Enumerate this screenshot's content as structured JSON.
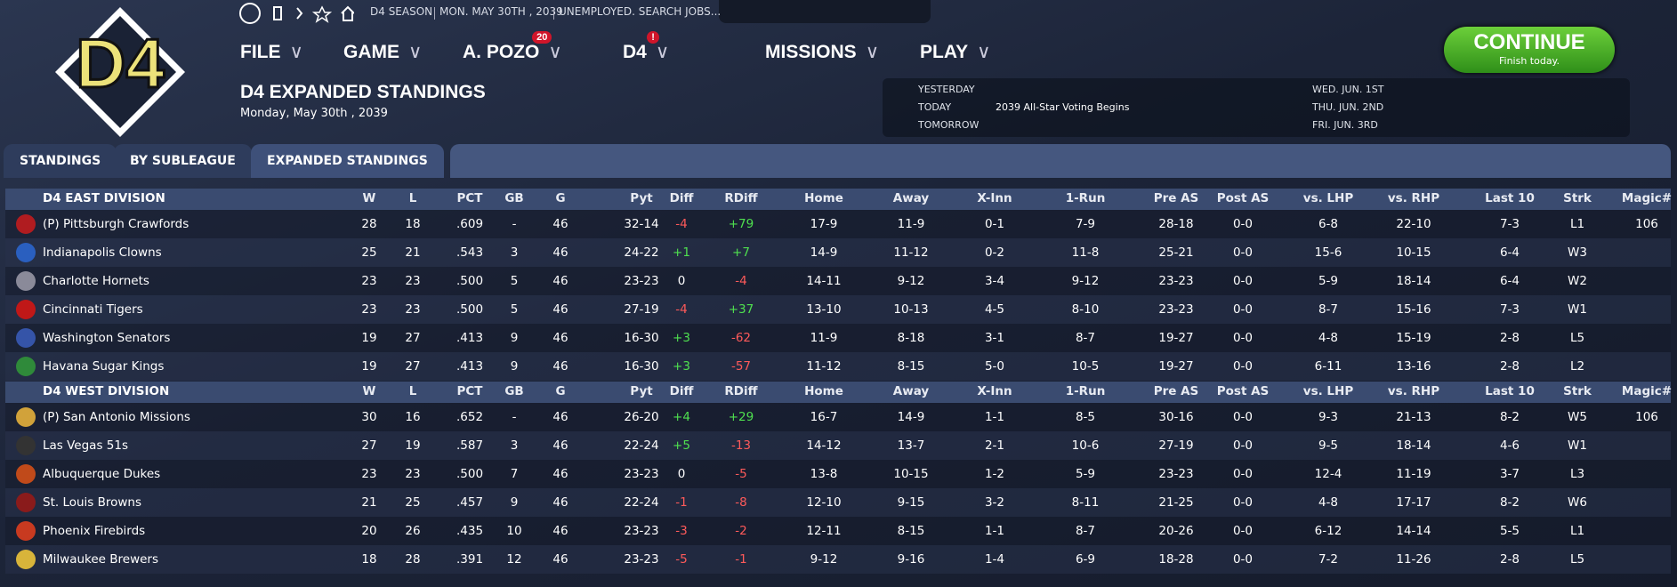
{
  "header": {
    "logo": "D4",
    "toolbar": [
      "D4 SEASON",
      "MON. MAY 30TH , 2039",
      "UNEMPLOYED. SEARCH JOBS..."
    ],
    "menu": [
      {
        "label": "FILE"
      },
      {
        "label": "GAME"
      },
      {
        "label": "A. POZO",
        "badge": "20"
      },
      {
        "label": "D4",
        "badge": "!"
      },
      {
        "label": "MISSIONS"
      },
      {
        "label": "PLAY"
      }
    ],
    "page_title": "D4 EXPANDED STANDINGS",
    "date": "Monday, May 30th , 2039"
  },
  "schedule": {
    "days": [
      "YESTERDAY",
      "TODAY",
      "TOMORROW"
    ],
    "today_event": "2039 All-Star Voting Begins",
    "upcoming": [
      "WED. JUN. 1ST",
      "THU. JUN. 2ND",
      "FRI. JUN. 3RD"
    ]
  },
  "continue": {
    "label": "CONTINUE",
    "sub": "Finish today."
  },
  "tabs": [
    "STANDINGS",
    "BY SUBLEAGUE",
    "EXPANDED STANDINGS"
  ],
  "table": {
    "columns": [
      "W",
      "L",
      "PCT",
      "GB",
      "G",
      "Pyt",
      "Diff",
      "RDiff",
      "Home",
      "Away",
      "X-Inn",
      "1-Run",
      "Pre AS",
      "Post AS",
      "vs. LHP",
      "vs. RHP",
      "Last 10",
      "Strk",
      "Magic#"
    ],
    "divisions": [
      {
        "name": "D4 EAST DIVISION",
        "rows": [
          [
            "(P) Pittsburgh Crawfords",
            "28",
            "18",
            ".609",
            "-",
            "46",
            "32-14",
            "-4",
            "+79",
            "17-9",
            "11-9",
            "0-1",
            "7-9",
            "28-18",
            "0-0",
            "6-8",
            "22-10",
            "7-3",
            "L1",
            "106"
          ],
          [
            "Indianapolis Clowns",
            "25",
            "21",
            ".543",
            "3",
            "46",
            "24-22",
            "+1",
            "+7",
            "14-9",
            "11-12",
            "0-2",
            "11-8",
            "25-21",
            "0-0",
            "15-6",
            "10-15",
            "6-4",
            "W3"
          ],
          [
            "Charlotte Hornets",
            "23",
            "23",
            ".500",
            "5",
            "46",
            "23-23",
            "0",
            "-4",
            "14-11",
            "9-12",
            "3-4",
            "9-12",
            "23-23",
            "0-0",
            "5-9",
            "18-14",
            "6-4",
            "W2"
          ],
          [
            "Cincinnati Tigers",
            "23",
            "23",
            ".500",
            "5",
            "46",
            "27-19",
            "-4",
            "+37",
            "13-10",
            "10-13",
            "4-5",
            "8-10",
            "23-23",
            "0-0",
            "8-7",
            "15-16",
            "7-3",
            "W1"
          ],
          [
            "Washington Senators",
            "19",
            "27",
            ".413",
            "9",
            "46",
            "16-30",
            "+3",
            "-62",
            "11-9",
            "8-18",
            "3-1",
            "8-7",
            "19-27",
            "0-0",
            "4-8",
            "15-19",
            "2-8",
            "L5"
          ],
          [
            "Havana Sugar Kings",
            "19",
            "27",
            ".413",
            "9",
            "46",
            "16-30",
            "+3",
            "-57",
            "11-12",
            "8-15",
            "5-0",
            "10-5",
            "19-27",
            "0-0",
            "6-11",
            "13-16",
            "2-8",
            "L2"
          ]
        ]
      },
      {
        "name": "D4 WEST DIVISION",
        "rows": [
          [
            "(P) San Antonio Missions",
            "30",
            "16",
            ".652",
            "-",
            "46",
            "26-20",
            "+4",
            "+29",
            "16-7",
            "14-9",
            "1-1",
            "8-5",
            "30-16",
            "0-0",
            "9-3",
            "21-13",
            "8-2",
            "W5",
            "106"
          ],
          [
            "Las Vegas 51s",
            "27",
            "19",
            ".587",
            "3",
            "46",
            "22-24",
            "+5",
            "-13",
            "14-12",
            "13-7",
            "2-1",
            "10-6",
            "27-19",
            "0-0",
            "9-5",
            "18-14",
            "4-6",
            "W1"
          ],
          [
            "Albuquerque Dukes",
            "23",
            "23",
            ".500",
            "7",
            "46",
            "23-23",
            "0",
            "-5",
            "13-8",
            "10-15",
            "1-2",
            "5-9",
            "23-23",
            "0-0",
            "12-4",
            "11-19",
            "3-7",
            "L3"
          ],
          [
            "St. Louis Browns",
            "21",
            "25",
            ".457",
            "9",
            "46",
            "22-24",
            "-1",
            "-8",
            "12-10",
            "9-15",
            "3-2",
            "8-11",
            "21-25",
            "0-0",
            "4-8",
            "17-17",
            "8-2",
            "W6"
          ],
          [
            "Phoenix Firebirds",
            "20",
            "26",
            ".435",
            "10",
            "46",
            "23-23",
            "-3",
            "-2",
            "12-11",
            "8-15",
            "1-1",
            "8-7",
            "20-26",
            "0-0",
            "6-12",
            "14-14",
            "5-5",
            "L1"
          ],
          [
            "Milwaukee Brewers",
            "18",
            "28",
            ".391",
            "12",
            "46",
            "23-23",
            "-5",
            "-1",
            "9-12",
            "9-16",
            "1-4",
            "6-9",
            "18-28",
            "0-0",
            "7-2",
            "11-26",
            "2-8",
            "L5"
          ]
        ]
      }
    ]
  }
}
